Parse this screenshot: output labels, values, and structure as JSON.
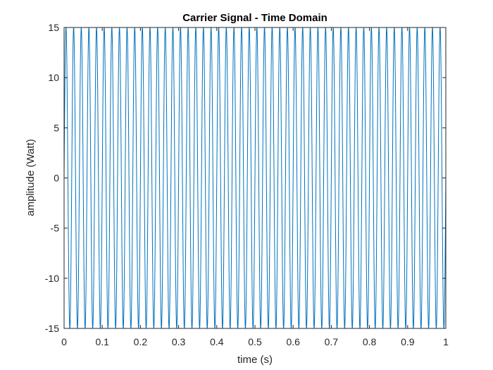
{
  "chart_data": {
    "type": "line",
    "title": "Carrier Signal - Time Domain",
    "xlabel": "time (s)",
    "ylabel": "amplitude (Watt)",
    "xlim": [
      0,
      1
    ],
    "ylim": [
      -15,
      15
    ],
    "xticks": [
      0,
      0.1,
      0.2,
      0.3,
      0.4,
      0.5,
      0.6,
      0.7,
      0.8,
      0.9,
      1
    ],
    "xtick_labels": [
      "0",
      "0.1",
      "0.2",
      "0.3",
      "0.4",
      "0.5",
      "0.6",
      "0.7",
      "0.8",
      "0.9",
      "1"
    ],
    "yticks": [
      15,
      10,
      5,
      0,
      -5,
      -10,
      -15
    ],
    "ytick_labels": [
      "15",
      "10",
      "5",
      "0",
      "-5",
      "-10",
      "-15"
    ],
    "grid": false,
    "series": [
      {
        "function": "sine",
        "amplitude": 15,
        "frequency_hz": 50,
        "phase": 0,
        "t_start": 0,
        "t_end": 1,
        "color": "#0072BD"
      }
    ]
  }
}
